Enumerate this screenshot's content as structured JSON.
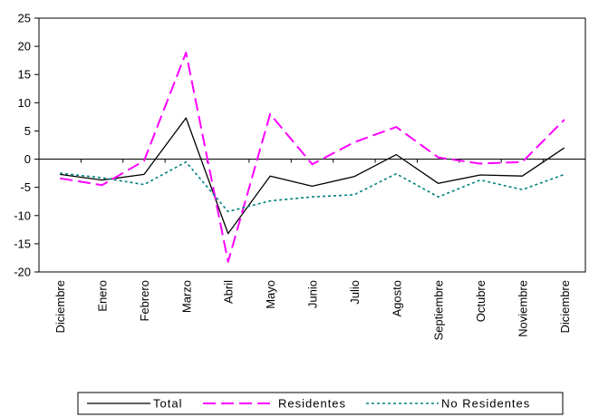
{
  "chart_data": {
    "type": "line",
    "categories": [
      "Diciembre",
      "Enero",
      "Febrero",
      "Marzo",
      "Abril",
      "Mayo",
      "Junio",
      "Julio",
      "Agosto",
      "Septiembre",
      "Octubre",
      "Noviembre",
      "Diciembre"
    ],
    "ylim": [
      -20,
      25
    ],
    "yticks": [
      -20,
      -15,
      -10,
      -5,
      0,
      5,
      10,
      15,
      20,
      25
    ],
    "grid": false,
    "legend_position": "bottom",
    "series": [
      {
        "name": "Total",
        "color": "#000000",
        "dash": "solid",
        "values": [
          -2.7,
          -3.7,
          -2.7,
          7.3,
          -13.2,
          -3.0,
          -4.8,
          -3.1,
          0.8,
          -4.3,
          -2.8,
          -3.0,
          2.0
        ]
      },
      {
        "name": "Residentes",
        "color": "#ff00ff",
        "dash": "dashed",
        "values": [
          -3.4,
          -4.6,
          -0.3,
          18.9,
          -18.2,
          8.0,
          -0.9,
          3.0,
          5.7,
          0.3,
          -0.8,
          -0.5,
          7.0
        ]
      },
      {
        "name": "No Residentes",
        "color": "#008080",
        "dash": "dotted",
        "values": [
          -2.5,
          -3.3,
          -4.5,
          -0.5,
          -9.3,
          -7.4,
          -6.7,
          -6.3,
          -2.6,
          -6.7,
          -3.7,
          -5.4,
          -2.7
        ]
      }
    ]
  }
}
